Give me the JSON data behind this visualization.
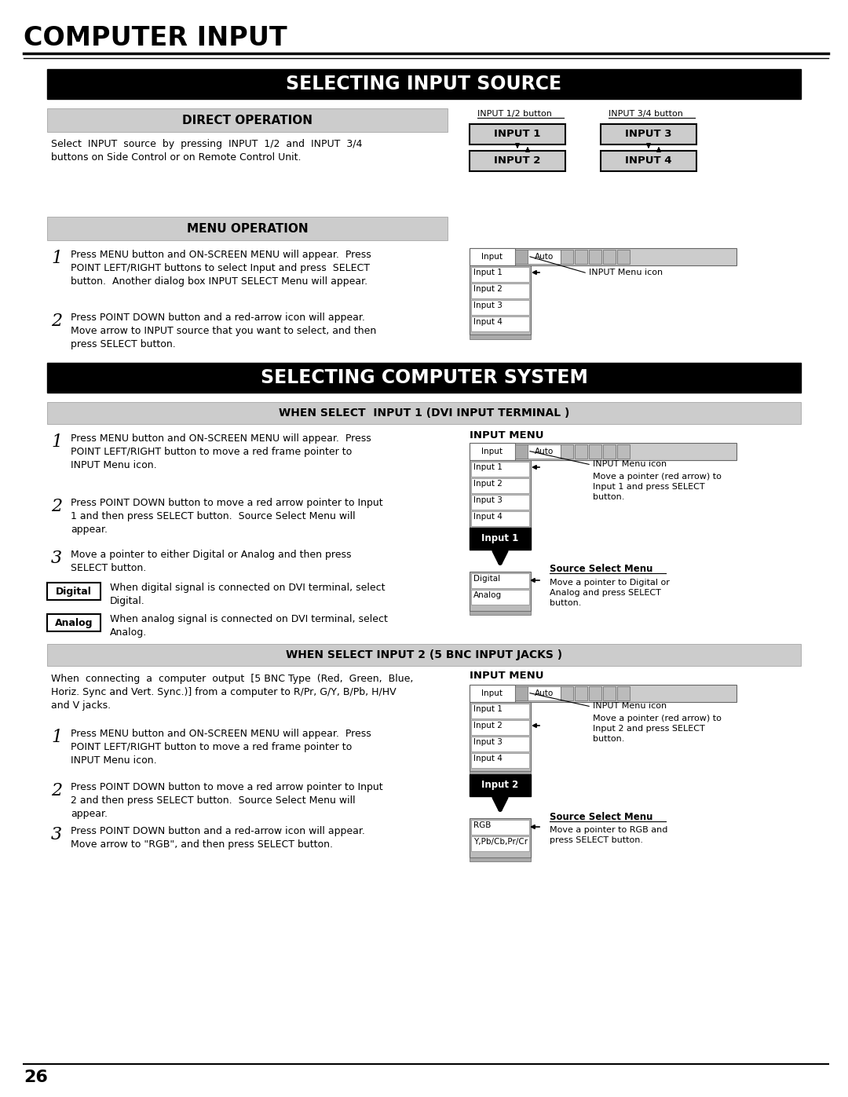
{
  "page_title": "COMPUTER INPUT",
  "page_number": "26",
  "bg_color": "#ffffff",
  "section1_title": "SELECTING INPUT SOURCE",
  "section2_title": "SELECTING COMPUTER SYSTEM",
  "direct_op_title": "DIRECT OPERATION",
  "menu_op_title": "MENU OPERATION",
  "when1_title": "WHEN SELECT  INPUT 1 (DVI INPUT TERMINAL )",
  "when2_title": "WHEN SELECT INPUT 2 (5 BNC INPUT JACKS )",
  "input_menu_icon_label": "INPUT Menu icon",
  "source_select_menu_label": "Source Select Menu",
  "when2_source_menu_label": "Source Select Menu"
}
